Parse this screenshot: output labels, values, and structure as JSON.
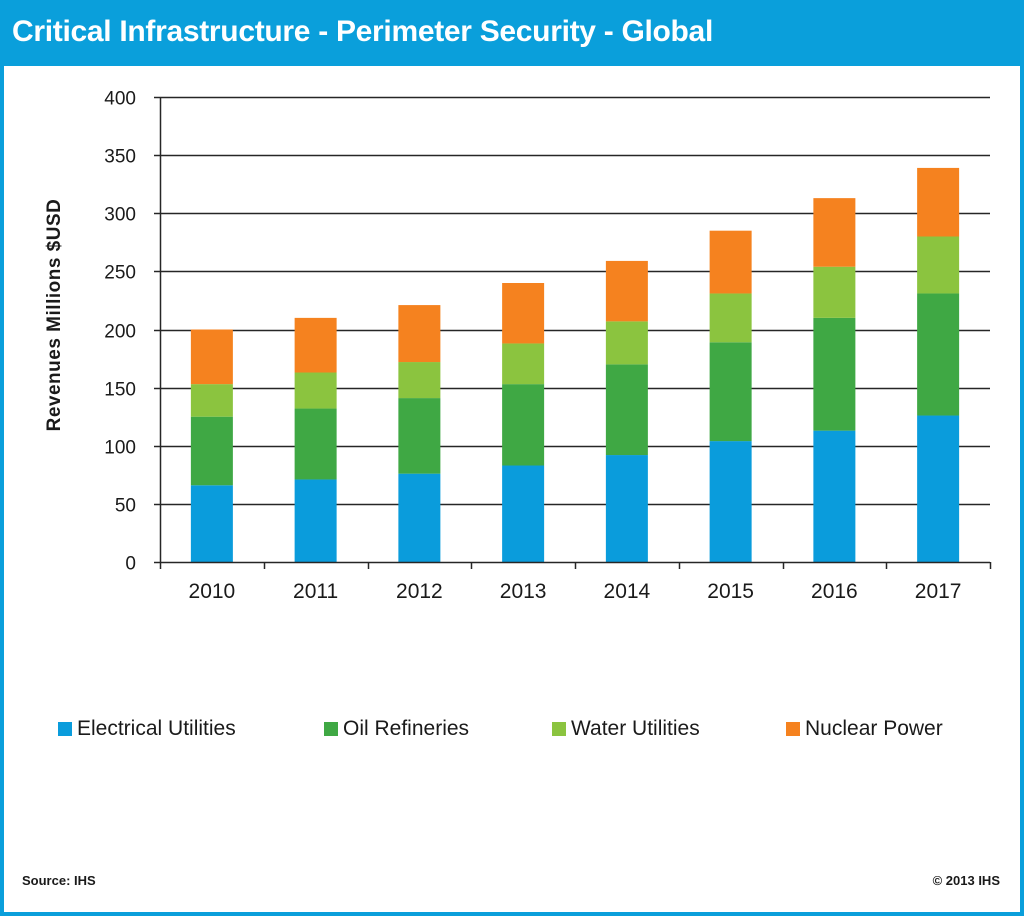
{
  "header": {
    "title": "Critical Infrastructure - Perimeter Security - Global"
  },
  "footer": {
    "source": "Source: IHS",
    "copyright": "© 2013 IHS"
  },
  "colors": {
    "frame": "#0A9FDB",
    "gridline": "#262626"
  },
  "chart_data": {
    "type": "bar",
    "stacked": true,
    "title": "Critical Infrastructure - Perimeter Security - Global",
    "xlabel": "",
    "ylabel": "Revenues Millions $USD",
    "ylim": [
      0,
      400
    ],
    "yticks": [
      0,
      50,
      100,
      150,
      200,
      250,
      300,
      350,
      400
    ],
    "categories": [
      "2010",
      "2011",
      "2012",
      "2013",
      "2014",
      "2015",
      "2016",
      "2017"
    ],
    "grid": true,
    "legend_position": "bottom",
    "series": [
      {
        "name": "Electrical Utilities",
        "color": "#0A9CDC",
        "values": [
          66,
          71,
          76,
          83,
          92,
          104,
          113,
          126
        ]
      },
      {
        "name": "Oil Refineries",
        "color": "#3FA844",
        "values": [
          59,
          61,
          65,
          70,
          78,
          85,
          97,
          105
        ]
      },
      {
        "name": "Water Utilities",
        "color": "#8BC43F",
        "values": [
          28,
          31,
          31,
          35,
          37,
          42,
          44,
          49
        ]
      },
      {
        "name": "Nuclear Power",
        "color": "#F5821F",
        "values": [
          47,
          47,
          49,
          52,
          52,
          54,
          59,
          59
        ]
      }
    ]
  }
}
